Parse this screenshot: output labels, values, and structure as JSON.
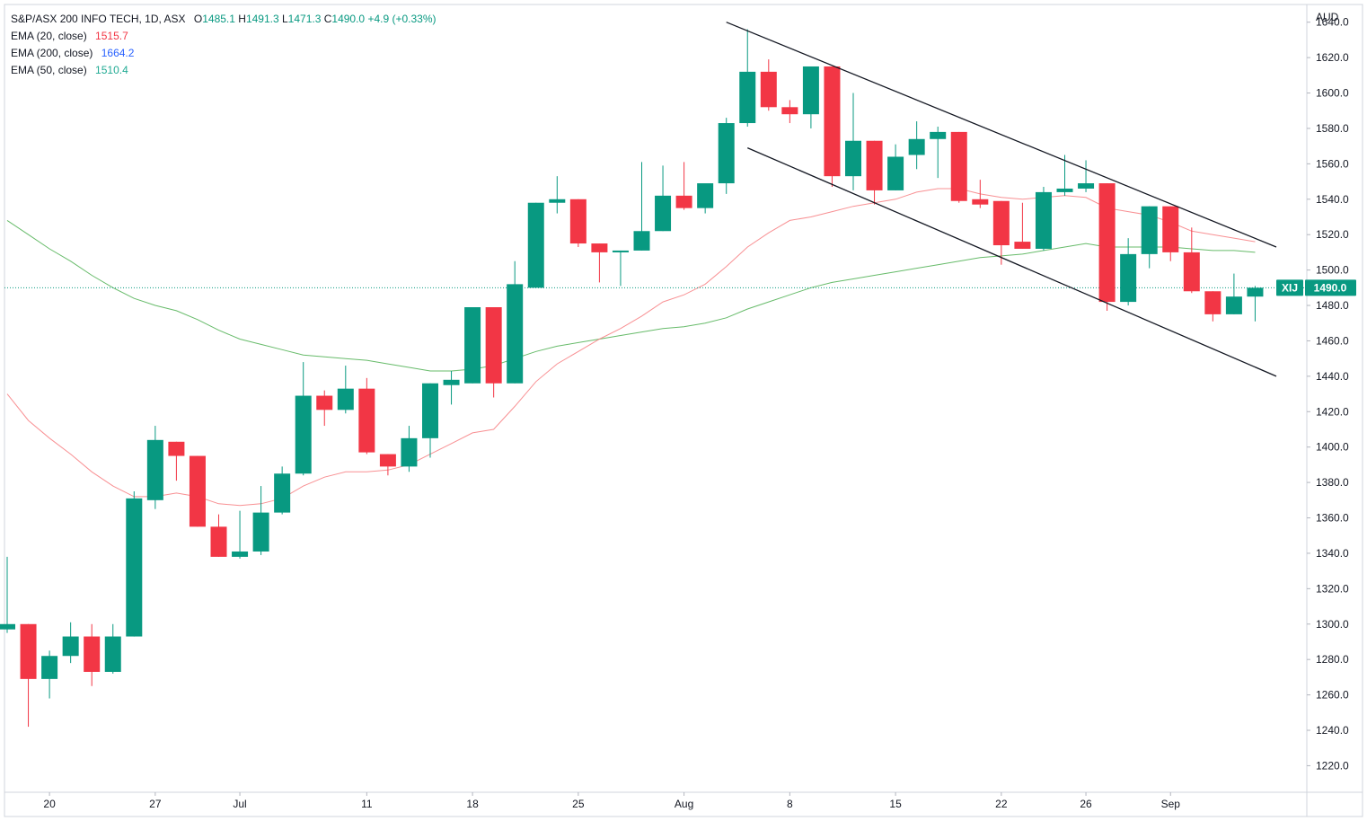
{
  "chart_data": {
    "type": "candlestick",
    "currency": "AUD",
    "header": {
      "symbol_line": "S&P/ASX 200 INFO TECH, 1D, ASX",
      "open_label": "O",
      "open": "1485.1",
      "high_label": "H",
      "high": "1491.3",
      "low_label": "L",
      "low": "1471.3",
      "close_label": "C",
      "close": "1490.0",
      "change": "+4.9 (+0.33%)"
    },
    "indicators": [
      {
        "label": "EMA (20, close)",
        "value": "1515.7",
        "color": "#f23645"
      },
      {
        "label": "EMA (200, close)",
        "value": "1664.2",
        "color": "#2962ff"
      },
      {
        "label": "EMA (50, close)",
        "value": "1510.4",
        "color": "#22ab94"
      }
    ],
    "price_tag": {
      "ticker": "XIJ",
      "value": "1490.0",
      "price": 1490.0
    },
    "ylim": [
      1205,
      1650
    ],
    "y_ticks": [
      1220,
      1240,
      1260,
      1280,
      1300,
      1320,
      1340,
      1360,
      1380,
      1400,
      1420,
      1440,
      1460,
      1480,
      1500,
      1520,
      1540,
      1560,
      1580,
      1600,
      1620,
      1640
    ],
    "x_ticks": [
      {
        "label": "20",
        "index": 2
      },
      {
        "label": "27",
        "index": 7
      },
      {
        "label": "Jul",
        "index": 11
      },
      {
        "label": "11",
        "index": 17
      },
      {
        "label": "18",
        "index": 22
      },
      {
        "label": "25",
        "index": 27
      },
      {
        "label": "Aug",
        "index": 32
      },
      {
        "label": "8",
        "index": 37
      },
      {
        "label": "15",
        "index": 42
      },
      {
        "label": "22",
        "index": 47
      },
      {
        "label": "26",
        "index": 51
      },
      {
        "label": "Sep",
        "index": 55
      }
    ],
    "candles": [
      {
        "o": 1297,
        "h": 1338,
        "l": 1295,
        "c": 1300
      },
      {
        "o": 1300,
        "h": 1300,
        "l": 1242,
        "c": 1269
      },
      {
        "o": 1269,
        "h": 1285,
        "l": 1258,
        "c": 1282
      },
      {
        "o": 1282,
        "h": 1301,
        "l": 1278,
        "c": 1293
      },
      {
        "o": 1293,
        "h": 1300,
        "l": 1265,
        "c": 1273
      },
      {
        "o": 1273,
        "h": 1300,
        "l": 1272,
        "c": 1293
      },
      {
        "o": 1293,
        "h": 1375,
        "l": 1293,
        "c": 1371
      },
      {
        "o": 1370,
        "h": 1412,
        "l": 1365,
        "c": 1404
      },
      {
        "o": 1403,
        "h": 1403,
        "l": 1381,
        "c": 1395
      },
      {
        "o": 1395,
        "h": 1395,
        "l": 1355,
        "c": 1355
      },
      {
        "o": 1355,
        "h": 1362,
        "l": 1338,
        "c": 1338
      },
      {
        "o": 1338,
        "h": 1364,
        "l": 1337,
        "c": 1341
      },
      {
        "o": 1341,
        "h": 1378,
        "l": 1339,
        "c": 1363
      },
      {
        "o": 1363,
        "h": 1389,
        "l": 1362,
        "c": 1385
      },
      {
        "o": 1385,
        "h": 1448,
        "l": 1384,
        "c": 1429
      },
      {
        "o": 1429,
        "h": 1432,
        "l": 1412,
        "c": 1421
      },
      {
        "o": 1421,
        "h": 1446,
        "l": 1419,
        "c": 1433
      },
      {
        "o": 1433,
        "h": 1439,
        "l": 1396,
        "c": 1397
      },
      {
        "o": 1396,
        "h": 1396,
        "l": 1384,
        "c": 1389
      },
      {
        "o": 1389,
        "h": 1412,
        "l": 1386,
        "c": 1405
      },
      {
        "o": 1405,
        "h": 1436,
        "l": 1394,
        "c": 1436
      },
      {
        "o": 1435,
        "h": 1443,
        "l": 1424,
        "c": 1438
      },
      {
        "o": 1436,
        "h": 1479,
        "l": 1436,
        "c": 1479
      },
      {
        "o": 1479,
        "h": 1479,
        "l": 1428,
        "c": 1436
      },
      {
        "o": 1436,
        "h": 1505,
        "l": 1436,
        "c": 1492
      },
      {
        "o": 1490,
        "h": 1538,
        "l": 1490,
        "c": 1538
      },
      {
        "o": 1538,
        "h": 1553,
        "l": 1532,
        "c": 1540
      },
      {
        "o": 1540,
        "h": 1540,
        "l": 1513,
        "c": 1515
      },
      {
        "o": 1515,
        "h": 1515,
        "l": 1493,
        "c": 1510
      },
      {
        "o": 1510,
        "h": 1511,
        "l": 1491,
        "c": 1511
      },
      {
        "o": 1511,
        "h": 1561,
        "l": 1511,
        "c": 1522
      },
      {
        "o": 1522,
        "h": 1559,
        "l": 1522,
        "c": 1542
      },
      {
        "o": 1542,
        "h": 1561,
        "l": 1534,
        "c": 1535
      },
      {
        "o": 1535,
        "h": 1548,
        "l": 1532,
        "c": 1549
      },
      {
        "o": 1549,
        "h": 1586,
        "l": 1543,
        "c": 1583
      },
      {
        "o": 1583,
        "h": 1636,
        "l": 1581,
        "c": 1612
      },
      {
        "o": 1612,
        "h": 1619,
        "l": 1590,
        "c": 1592
      },
      {
        "o": 1592,
        "h": 1596,
        "l": 1583,
        "c": 1588
      },
      {
        "o": 1588,
        "h": 1615,
        "l": 1580,
        "c": 1615
      },
      {
        "o": 1615,
        "h": 1615,
        "l": 1547,
        "c": 1553
      },
      {
        "o": 1553,
        "h": 1600,
        "l": 1545,
        "c": 1573
      },
      {
        "o": 1573,
        "h": 1573,
        "l": 1537,
        "c": 1545
      },
      {
        "o": 1545,
        "h": 1571,
        "l": 1545,
        "c": 1564
      },
      {
        "o": 1565,
        "h": 1584,
        "l": 1557,
        "c": 1574
      },
      {
        "o": 1574,
        "h": 1581,
        "l": 1552,
        "c": 1578
      },
      {
        "o": 1578,
        "h": 1578,
        "l": 1538,
        "c": 1539
      },
      {
        "o": 1540,
        "h": 1551,
        "l": 1535,
        "c": 1537
      },
      {
        "o": 1539,
        "h": 1539,
        "l": 1503,
        "c": 1514
      },
      {
        "o": 1516,
        "h": 1538,
        "l": 1512,
        "c": 1512
      },
      {
        "o": 1512,
        "h": 1547,
        "l": 1511,
        "c": 1544
      },
      {
        "o": 1544,
        "h": 1565,
        "l": 1542,
        "c": 1546
      },
      {
        "o": 1546,
        "h": 1562,
        "l": 1544,
        "c": 1549
      },
      {
        "o": 1549,
        "h": 1549,
        "l": 1477,
        "c": 1482
      },
      {
        "o": 1482,
        "h": 1518,
        "l": 1480,
        "c": 1509
      },
      {
        "o": 1509,
        "h": 1536,
        "l": 1501,
        "c": 1536
      },
      {
        "o": 1536,
        "h": 1536,
        "l": 1505,
        "c": 1510
      },
      {
        "o": 1510,
        "h": 1524,
        "l": 1487,
        "c": 1488
      },
      {
        "o": 1488,
        "h": 1488,
        "l": 1471,
        "c": 1475
      },
      {
        "o": 1475,
        "h": 1498,
        "l": 1475,
        "c": 1485
      },
      {
        "o": 1485,
        "h": 1491,
        "l": 1471,
        "c": 1490
      }
    ],
    "ema20": [
      [
        0,
        1430
      ],
      [
        1,
        1415
      ],
      [
        2,
        1405
      ],
      [
        3,
        1396
      ],
      [
        4,
        1386
      ],
      [
        5,
        1378
      ],
      [
        6,
        1372
      ],
      [
        7,
        1372
      ],
      [
        8,
        1374
      ],
      [
        9,
        1372
      ],
      [
        10,
        1368
      ],
      [
        11,
        1367
      ],
      [
        12,
        1368
      ],
      [
        13,
        1371
      ],
      [
        14,
        1378
      ],
      [
        15,
        1383
      ],
      [
        16,
        1386
      ],
      [
        17,
        1386
      ],
      [
        18,
        1387
      ],
      [
        19,
        1390
      ],
      [
        20,
        1396
      ],
      [
        21,
        1402
      ],
      [
        22,
        1408
      ],
      [
        23,
        1410
      ],
      [
        24,
        1423
      ],
      [
        25,
        1437
      ],
      [
        26,
        1447
      ],
      [
        27,
        1454
      ],
      [
        28,
        1461
      ],
      [
        29,
        1467
      ],
      [
        30,
        1474
      ],
      [
        31,
        1482
      ],
      [
        32,
        1486
      ],
      [
        33,
        1492
      ],
      [
        34,
        1502
      ],
      [
        35,
        1513
      ],
      [
        36,
        1521
      ],
      [
        37,
        1528
      ],
      [
        38,
        1530
      ],
      [
        39,
        1533
      ],
      [
        40,
        1536
      ],
      [
        41,
        1538
      ],
      [
        42,
        1540
      ],
      [
        43,
        1544
      ],
      [
        44,
        1546
      ],
      [
        45,
        1546
      ],
      [
        46,
        1543
      ],
      [
        47,
        1541
      ],
      [
        48,
        1540
      ],
      [
        49,
        1541
      ],
      [
        50,
        1542
      ],
      [
        51,
        1541
      ],
      [
        52,
        1535
      ],
      [
        53,
        1533
      ],
      [
        54,
        1531
      ],
      [
        55,
        1527
      ],
      [
        56,
        1522
      ],
      [
        57,
        1520
      ],
      [
        58,
        1518
      ],
      [
        59,
        1516
      ]
    ],
    "ema50": [
      [
        0,
        1528
      ],
      [
        1,
        1520
      ],
      [
        2,
        1512
      ],
      [
        3,
        1505
      ],
      [
        4,
        1497
      ],
      [
        5,
        1490
      ],
      [
        6,
        1484
      ],
      [
        7,
        1480
      ],
      [
        8,
        1477
      ],
      [
        9,
        1472
      ],
      [
        10,
        1466
      ],
      [
        11,
        1461
      ],
      [
        12,
        1458
      ],
      [
        13,
        1455
      ],
      [
        14,
        1452
      ],
      [
        15,
        1451
      ],
      [
        16,
        1450
      ],
      [
        17,
        1449
      ],
      [
        18,
        1447
      ],
      [
        19,
        1445
      ],
      [
        20,
        1443
      ],
      [
        21,
        1443
      ],
      [
        22,
        1444
      ],
      [
        23,
        1446
      ],
      [
        24,
        1450
      ],
      [
        25,
        1454
      ],
      [
        26,
        1457
      ],
      [
        27,
        1459
      ],
      [
        28,
        1461
      ],
      [
        29,
        1463
      ],
      [
        30,
        1465
      ],
      [
        31,
        1467
      ],
      [
        32,
        1468
      ],
      [
        33,
        1470
      ],
      [
        34,
        1473
      ],
      [
        35,
        1478
      ],
      [
        36,
        1482
      ],
      [
        37,
        1486
      ],
      [
        38,
        1490
      ],
      [
        39,
        1493
      ],
      [
        40,
        1495
      ],
      [
        41,
        1497
      ],
      [
        42,
        1499
      ],
      [
        43,
        1501
      ],
      [
        44,
        1503
      ],
      [
        45,
        1505
      ],
      [
        46,
        1507
      ],
      [
        47,
        1508
      ],
      [
        48,
        1509
      ],
      [
        49,
        1511
      ],
      [
        50,
        1513
      ],
      [
        51,
        1515
      ],
      [
        52,
        1513
      ],
      [
        53,
        1513
      ],
      [
        54,
        1513
      ],
      [
        55,
        1513
      ],
      [
        56,
        1512
      ],
      [
        57,
        1511
      ],
      [
        58,
        1511
      ],
      [
        59,
        1510
      ]
    ],
    "trendlines": [
      {
        "from": [
          34,
          1640
        ],
        "to": [
          60,
          1513
        ]
      },
      {
        "from": [
          35,
          1569
        ],
        "to": [
          60,
          1440
        ]
      }
    ]
  }
}
